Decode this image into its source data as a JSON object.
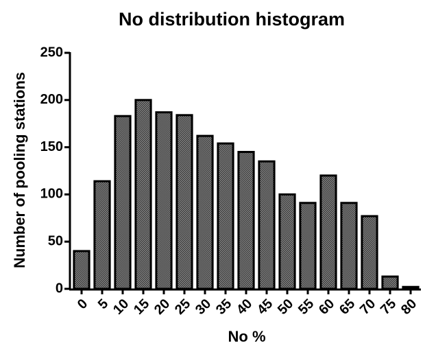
{
  "chart_data": {
    "type": "bar",
    "title": "No distribution histogram",
    "x_label": "No %",
    "y_label": "Number of pooling stations",
    "categories": [
      "0",
      "5",
      "10",
      "15",
      "20",
      "25",
      "30",
      "35",
      "40",
      "45",
      "50",
      "55",
      "60",
      "65",
      "70",
      "75",
      "80"
    ],
    "values": [
      40,
      114,
      183,
      200,
      187,
      184,
      162,
      154,
      145,
      135,
      100,
      91,
      120,
      91,
      77,
      13,
      2
    ],
    "color": "#8c8c8c",
    "ylim": [
      0,
      250
    ],
    "yticks": [
      0,
      50,
      100,
      150,
      200,
      250
    ],
    "grid": false
  }
}
